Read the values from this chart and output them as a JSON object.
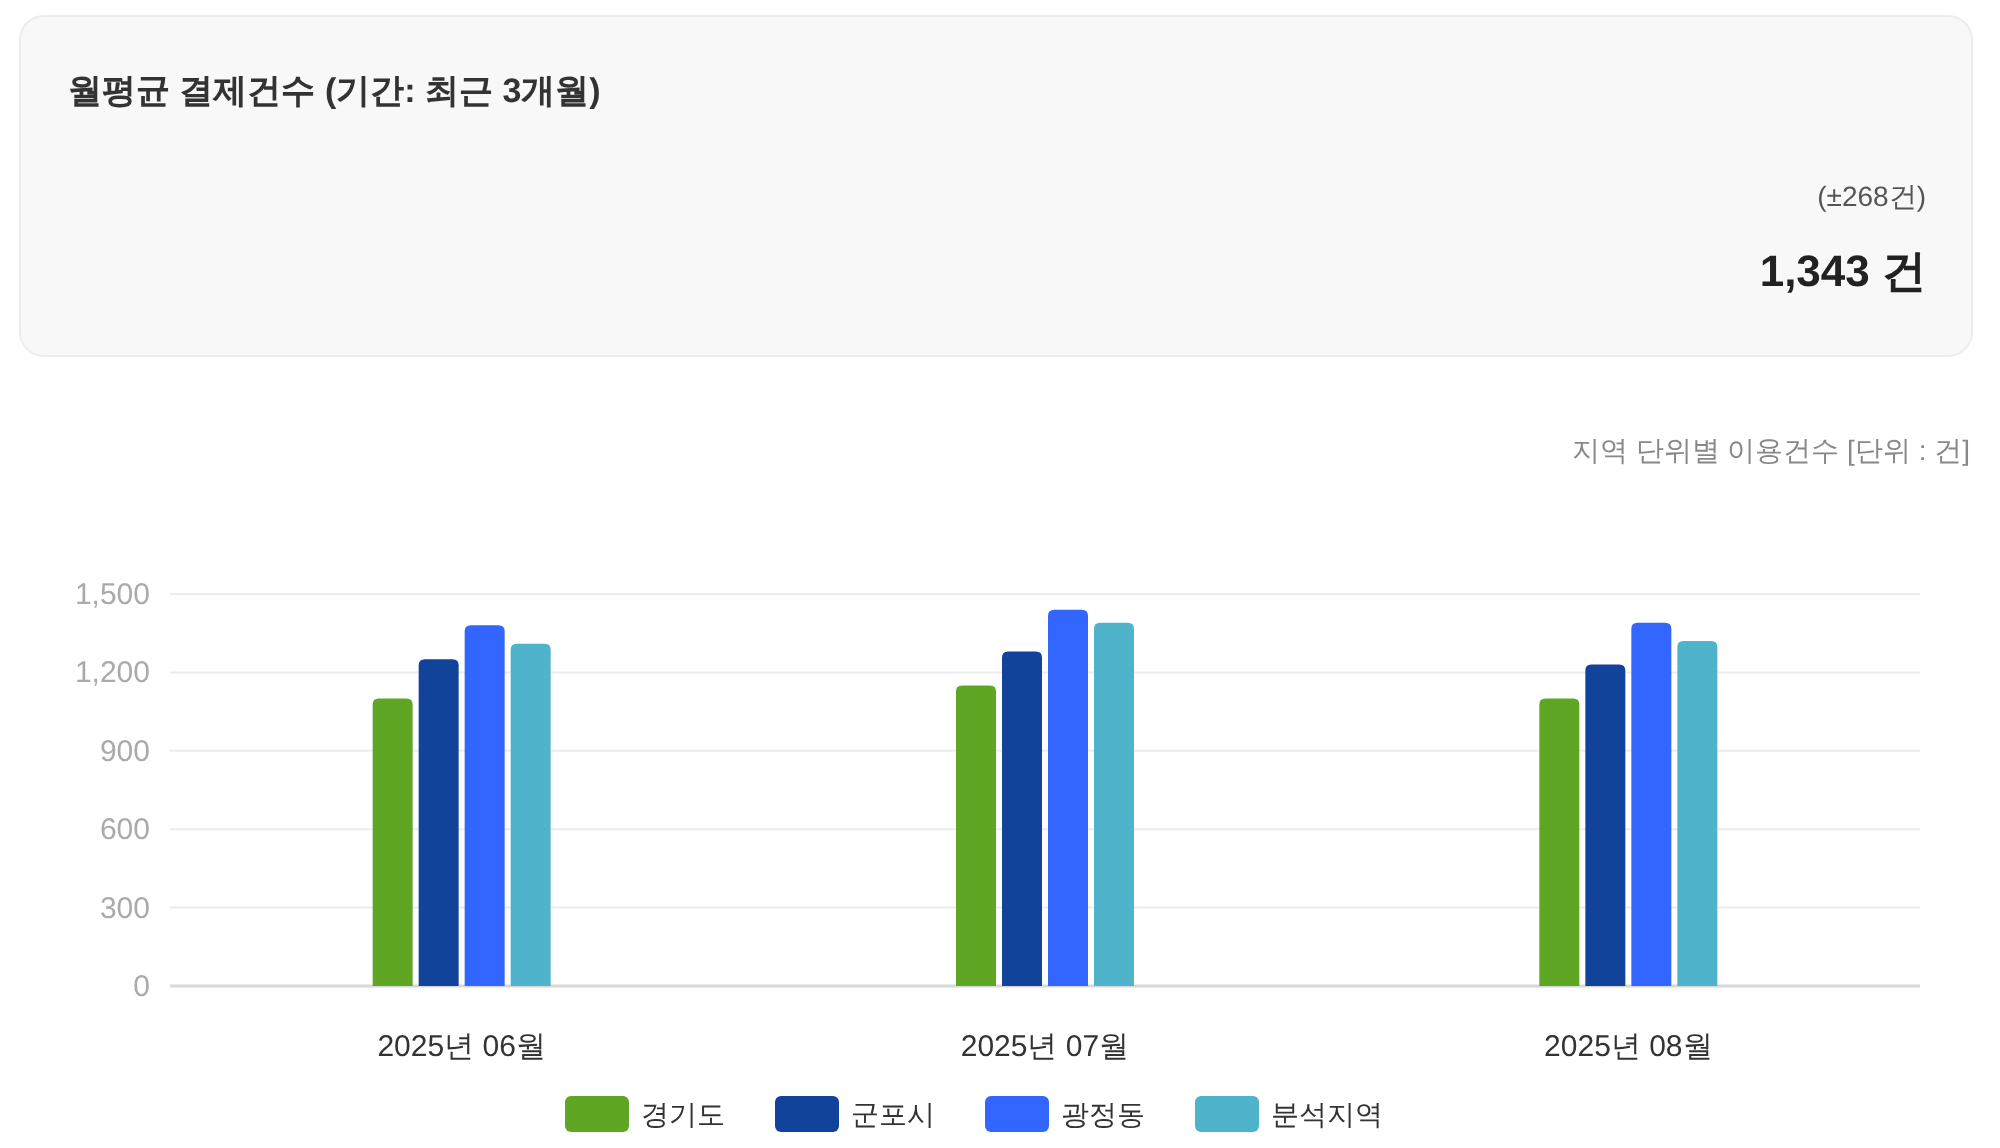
{
  "chart_data": [
    {
      "type": "other",
      "title": "월평균 결제건수 (기간: 최근 3개월)",
      "annotations": [
        "(±268건)",
        "1,343 건"
      ]
    },
    {
      "type": "bar",
      "annotations": [
        "지역 단위별 이용건수 [단위 : 건]"
      ],
      "categories": [
        "2025년 06월",
        "2025년 07월",
        "2025년 08월"
      ],
      "series": [
        {
          "name": "경기도",
          "color": "#5ea624",
          "values": [
            1100,
            1150,
            1100
          ]
        },
        {
          "name": "군포시",
          "color": "#12439b",
          "values": [
            1250,
            1280,
            1230
          ]
        },
        {
          "name": "광정동",
          "color": "#3366ff",
          "values": [
            1380,
            1440,
            1390
          ]
        },
        {
          "name": "분석지역",
          "color": "#4fb3cc",
          "values": [
            1310,
            1390,
            1320
          ]
        }
      ],
      "ylim": [
        0,
        1500
      ],
      "yticks": [
        0,
        300,
        600,
        900,
        {
          "value": 1200,
          "label": "1,200"
        },
        {
          "value": 1500,
          "label": "1,500"
        }
      ],
      "grid": "y",
      "legend": "bottom"
    }
  ]
}
